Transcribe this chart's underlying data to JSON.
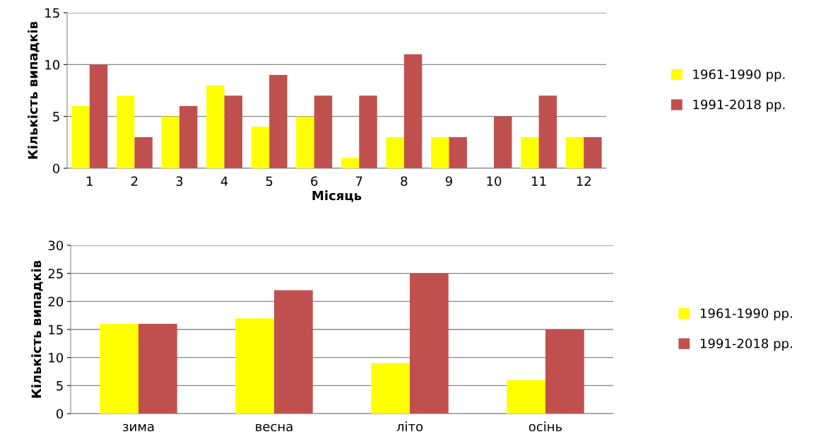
{
  "chart_data": [
    {
      "type": "bar",
      "xlabel": "Місяць",
      "ylabel": "Кількість випадків",
      "categories": [
        "1",
        "2",
        "3",
        "4",
        "5",
        "6",
        "7",
        "8",
        "9",
        "10",
        "11",
        "12"
      ],
      "series": [
        {
          "name": "1961-1990 рр.",
          "color": "#ffff00",
          "values": [
            6,
            7,
            5,
            8,
            4,
            5,
            1,
            3,
            3,
            0,
            3,
            3
          ]
        },
        {
          "name": "1991-2018 рр.",
          "color": "#c0504d",
          "values": [
            10,
            3,
            6,
            7,
            9,
            7,
            7,
            11,
            3,
            5,
            7,
            3
          ]
        }
      ],
      "ylim": [
        0,
        15
      ],
      "yticks": [
        0,
        5,
        10,
        15
      ],
      "grid": "y",
      "legend": "right"
    },
    {
      "type": "bar",
      "ylabel": "Кількість випадків",
      "categories": [
        "зима",
        "весна",
        "літо",
        "осінь"
      ],
      "series": [
        {
          "name": "1961-1990 рр.",
          "color": "#ffff00",
          "values": [
            16,
            17,
            9,
            6
          ]
        },
        {
          "name": "1991-2018 рр.",
          "color": "#c0504d",
          "values": [
            16,
            22,
            25,
            15
          ]
        }
      ],
      "ylim": [
        0,
        30
      ],
      "yticks": [
        0,
        5,
        10,
        15,
        20,
        25,
        30
      ],
      "grid": "y",
      "legend": "right"
    }
  ]
}
